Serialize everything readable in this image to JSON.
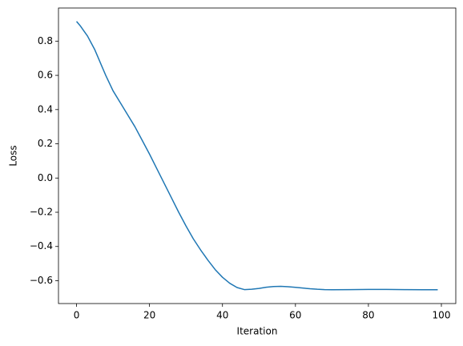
{
  "chart_data": {
    "type": "line",
    "x_label": "Iteration",
    "y_label": "Loss",
    "x": [
      0,
      1,
      2,
      3,
      4,
      5,
      6,
      7,
      8,
      10,
      12,
      14,
      16,
      18,
      20,
      22,
      24,
      26,
      28,
      30,
      32,
      34,
      36,
      38,
      40,
      42,
      44,
      46,
      48,
      50,
      52,
      54,
      56,
      58,
      60,
      62,
      64,
      66,
      68,
      70,
      75,
      80,
      85,
      90,
      95,
      99
    ],
    "series": [
      {
        "color": "#1f77b4",
        "values": [
          0.915,
          0.89,
          0.86,
          0.83,
          0.79,
          0.75,
          0.7,
          0.65,
          0.6,
          0.51,
          0.44,
          0.37,
          0.3,
          0.22,
          0.14,
          0.055,
          -0.03,
          -0.115,
          -0.2,
          -0.28,
          -0.355,
          -0.42,
          -0.48,
          -0.535,
          -0.58,
          -0.615,
          -0.64,
          -0.652,
          -0.65,
          -0.645,
          -0.638,
          -0.634,
          -0.633,
          -0.635,
          -0.639,
          -0.643,
          -0.647,
          -0.65,
          -0.652,
          -0.653,
          -0.652,
          -0.651,
          -0.651,
          -0.652,
          -0.653,
          -0.653
        ]
      }
    ],
    "xlim": [
      -4.95,
      103.95
    ],
    "xticks": [
      0,
      20,
      40,
      60,
      80,
      100
    ],
    "ylim": [
      -0.7335,
      0.9935
    ],
    "yticks": [
      {
        "value": -0.6,
        "label": "−0.6"
      },
      {
        "value": -0.4,
        "label": "−0.4"
      },
      {
        "value": -0.2,
        "label": "−0.2"
      },
      {
        "value": 0,
        "label": "0.0"
      },
      0.2,
      0.4,
      0.6,
      0.8
    ],
    "grid": false
  }
}
